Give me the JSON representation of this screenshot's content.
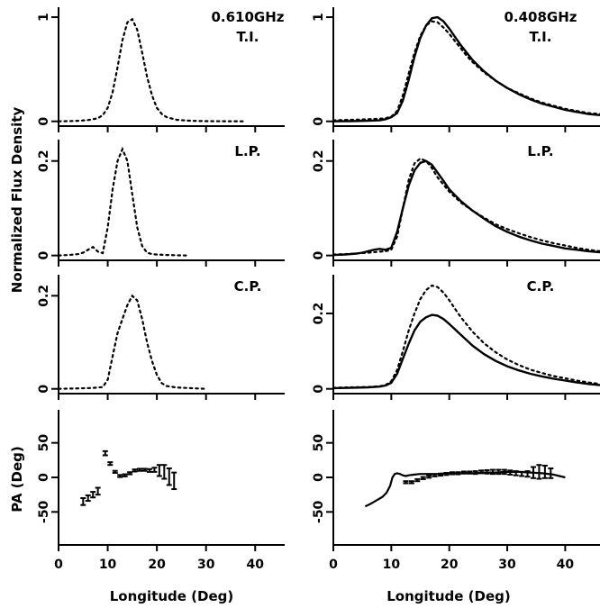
{
  "chart_data": {
    "type": "line",
    "xlabel": "Longitude (Deg)",
    "ylabel_flux": "Normalized Flux Density",
    "ylabel_pa": "PA (Deg)",
    "columns": [
      {
        "freq": "0.610GHz",
        "panels": [
          {
            "label": "T.I.",
            "ylim": [
              0,
              1.05
            ],
            "yticks": [
              0,
              1
            ],
            "dotted": {
              "x": [
                0,
                2,
                4,
                6,
                8,
                9,
                10,
                11,
                12,
                13,
                14,
                15,
                16,
                17,
                18,
                19,
                20,
                21,
                22,
                24,
                26,
                28,
                30,
                34,
                38
              ],
              "y": [
                0,
                0.002,
                0.005,
                0.012,
                0.03,
                0.06,
                0.13,
                0.28,
                0.52,
                0.78,
                0.95,
                0.98,
                0.88,
                0.66,
                0.43,
                0.25,
                0.13,
                0.07,
                0.04,
                0.015,
                0.008,
                0.004,
                0.002,
                0.001,
                0
              ]
            }
          },
          {
            "label": "L.P.",
            "ylim": [
              0,
              0.235
            ],
            "yticks": [
              0,
              0.2
            ],
            "dotted": {
              "x": [
                0,
                2,
                4,
                5,
                6,
                7,
                8,
                9,
                10,
                11,
                12,
                13,
                14,
                15,
                16,
                17,
                18,
                19,
                20,
                22,
                24,
                26
              ],
              "y": [
                0,
                0.001,
                0.003,
                0.006,
                0.012,
                0.018,
                0.008,
                0.005,
                0.06,
                0.14,
                0.2,
                0.225,
                0.2,
                0.13,
                0.06,
                0.02,
                0.006,
                0.003,
                0.002,
                0.001,
                0.0005,
                0
              ]
            }
          },
          {
            "label": "C.P.",
            "ylim": [
              0,
              0.235
            ],
            "yticks": [
              0,
              0.2
            ],
            "dotted": {
              "x": [
                0,
                4,
                7,
                9,
                10,
                11,
                12,
                13,
                14,
                15,
                16,
                17,
                18,
                19,
                20,
                21,
                22,
                24,
                26,
                30
              ],
              "y": [
                0,
                0.001,
                0.002,
                0.004,
                0.02,
                0.07,
                0.12,
                0.15,
                0.18,
                0.2,
                0.19,
                0.15,
                0.1,
                0.06,
                0.03,
                0.012,
                0.006,
                0.003,
                0.002,
                0
              ]
            }
          }
        ],
        "pa": {
          "ylim": [
            -90,
            90
          ],
          "yticks": [
            -50,
            0,
            50
          ],
          "x": [
            5,
            6,
            7,
            8,
            9.5,
            10.5,
            11.5,
            12.5,
            13.5,
            14.5,
            15.5,
            16.5,
            17.5,
            18.5,
            19.5,
            20.5,
            21.5,
            22.5,
            23.5
          ],
          "y": [
            -35,
            -30,
            -25,
            -20,
            35,
            20,
            8,
            2,
            3,
            6,
            10,
            11,
            11,
            10,
            11,
            10,
            8,
            1,
            -5
          ],
          "err": [
            5,
            4,
            4,
            5,
            3,
            2,
            1.5,
            1.5,
            1.5,
            1.5,
            1.5,
            1.5,
            1.5,
            2,
            3,
            8,
            10,
            12,
            12
          ]
        }
      },
      {
        "freq": "0.408GHz",
        "panels": [
          {
            "label": "T.I.",
            "ylim": [
              0,
              1.05
            ],
            "yticks": [
              0,
              1
            ],
            "solid": {
              "x": [
                0,
                3,
                6,
                8,
                9,
                10,
                11,
                12,
                13,
                14,
                15,
                16,
                17,
                18,
                19,
                20,
                21,
                22,
                23,
                24,
                26,
                28,
                30,
                32,
                34,
                36,
                38,
                40,
                42,
                44,
                46
              ],
              "y": [
                0,
                0.002,
                0.005,
                0.01,
                0.02,
                0.04,
                0.08,
                0.2,
                0.4,
                0.62,
                0.8,
                0.92,
                0.99,
                1,
                0.96,
                0.89,
                0.81,
                0.73,
                0.66,
                0.59,
                0.48,
                0.39,
                0.32,
                0.26,
                0.21,
                0.17,
                0.14,
                0.11,
                0.09,
                0.07,
                0.06
              ]
            },
            "dotted": {
              "x": [
                0,
                3,
                6,
                8,
                9,
                10,
                11,
                12,
                13,
                14,
                15,
                16,
                17,
                18,
                19,
                20,
                21,
                22,
                23,
                24,
                26,
                28,
                30,
                32,
                34,
                36,
                38,
                40,
                42,
                44,
                46
              ],
              "y": [
                0.01,
                0.015,
                0.02,
                0.025,
                0.03,
                0.045,
                0.1,
                0.25,
                0.46,
                0.66,
                0.82,
                0.92,
                0.96,
                0.95,
                0.9,
                0.84,
                0.77,
                0.7,
                0.63,
                0.57,
                0.47,
                0.39,
                0.32,
                0.27,
                0.22,
                0.18,
                0.15,
                0.12,
                0.1,
                0.08,
                0.07
              ]
            }
          },
          {
            "label": "L.P.",
            "ylim": [
              0,
              0.235
            ],
            "yticks": [
              0,
              0.2
            ],
            "solid": {
              "x": [
                0,
                2,
                4,
                5,
                6,
                7,
                8,
                9,
                10,
                11,
                12,
                13,
                14,
                15,
                16,
                17,
                18,
                19,
                20,
                22,
                24,
                26,
                28,
                30,
                32,
                34,
                36,
                38,
                40,
                42,
                44,
                46
              ],
              "y": [
                0.001,
                0.002,
                0.004,
                0.006,
                0.009,
                0.012,
                0.014,
                0.012,
                0.016,
                0.05,
                0.1,
                0.148,
                0.18,
                0.196,
                0.2,
                0.192,
                0.175,
                0.158,
                0.14,
                0.115,
                0.095,
                0.078,
                0.062,
                0.05,
                0.04,
                0.032,
                0.025,
                0.02,
                0.015,
                0.012,
                0.009,
                0.007
              ]
            },
            "dotted": {
              "x": [
                0,
                2,
                4,
                6,
                8,
                9,
                10,
                11,
                12,
                13,
                14,
                15,
                16,
                17,
                18,
                19,
                20,
                22,
                24,
                26,
                28,
                30,
                32,
                34,
                36,
                38,
                40,
                42,
                44,
                46
              ],
              "y": [
                0.002,
                0.003,
                0.004,
                0.006,
                0.008,
                0.009,
                0.012,
                0.04,
                0.1,
                0.16,
                0.195,
                0.205,
                0.2,
                0.185,
                0.165,
                0.15,
                0.135,
                0.112,
                0.095,
                0.08,
                0.066,
                0.056,
                0.047,
                0.039,
                0.032,
                0.026,
                0.021,
                0.016,
                0.012,
                0.009
              ]
            }
          },
          {
            "label": "C.P.",
            "ylim": [
              0,
              0.29
            ],
            "yticks": [
              0,
              0.2
            ],
            "solid": {
              "x": [
                0,
                3,
                6,
                8,
                9,
                10,
                11,
                12,
                13,
                14,
                15,
                16,
                17,
                18,
                19,
                20,
                21,
                22,
                24,
                26,
                28,
                30,
                32,
                34,
                36,
                38,
                40,
                42,
                44,
                46
              ],
              "y": [
                0.002,
                0.003,
                0.004,
                0.006,
                0.009,
                0.016,
                0.04,
                0.08,
                0.12,
                0.155,
                0.178,
                0.19,
                0.196,
                0.194,
                0.185,
                0.172,
                0.158,
                0.143,
                0.115,
                0.092,
                0.074,
                0.06,
                0.049,
                0.04,
                0.033,
                0.027,
                0.022,
                0.017,
                0.013,
                0.01
              ]
            },
            "dotted": {
              "x": [
                0,
                3,
                6,
                8,
                9,
                10,
                11,
                12,
                13,
                14,
                15,
                16,
                17,
                18,
                19,
                20,
                21,
                22,
                24,
                26,
                28,
                30,
                32,
                34,
                36,
                38,
                40,
                42,
                44,
                46
              ],
              "y": [
                0.003,
                0.004,
                0.005,
                0.007,
                0.01,
                0.02,
                0.05,
                0.1,
                0.155,
                0.2,
                0.238,
                0.262,
                0.274,
                0.27,
                0.255,
                0.235,
                0.212,
                0.19,
                0.152,
                0.121,
                0.097,
                0.078,
                0.063,
                0.051,
                0.042,
                0.034,
                0.028,
                0.022,
                0.017,
                0.013
              ]
            }
          }
        ],
        "pa": {
          "ylim": [
            -90,
            90
          ],
          "yticks": [
            -50,
            0,
            50
          ],
          "solid": {
            "x": [
              5.5,
              6.5,
              7.5,
              8.5,
              9.2,
              9.8,
              10.2,
              10.6,
              11,
              11.5,
              12,
              12.5,
              13,
              14,
              15,
              16,
              18,
              20,
              22,
              24,
              26,
              28,
              30,
              32,
              34,
              36,
              38,
              40
            ],
            "y": [
              -42,
              -38,
              -33,
              -28,
              -22,
              -12,
              0,
              5,
              6,
              5,
              3,
              2,
              3,
              4,
              5,
              5,
              5,
              6,
              6,
              6,
              7,
              7,
              8,
              8,
              7,
              6,
              4,
              0
            ]
          },
          "x": [
            12.5,
            13.5,
            14.5,
            15.5,
            16.5,
            17.5,
            18.5,
            19.5,
            20.5,
            21.5,
            22.5,
            23.5,
            24.5,
            25.5,
            26.5,
            27.5,
            28.5,
            29.5,
            30.5,
            31.5,
            32.5,
            33.5,
            34.5,
            35.5,
            36.5,
            37.5
          ],
          "y": [
            -7,
            -7,
            -4,
            -1,
            1,
            3,
            4,
            5,
            6,
            6,
            7,
            7,
            7,
            8,
            8,
            8,
            8,
            8,
            7,
            6,
            5,
            5,
            7,
            8,
            8,
            6
          ],
          "err": [
            1.5,
            1.5,
            1.5,
            1.5,
            1.5,
            1.5,
            1.5,
            1.5,
            1.5,
            1.5,
            1.5,
            1.5,
            2,
            2,
            2.5,
            3,
            3,
            3,
            3,
            3,
            3,
            4,
            8,
            10,
            9,
            7
          ]
        }
      }
    ],
    "xlim": [
      0,
      46
    ],
    "xticks": [
      0,
      10,
      20,
      30,
      40
    ]
  }
}
